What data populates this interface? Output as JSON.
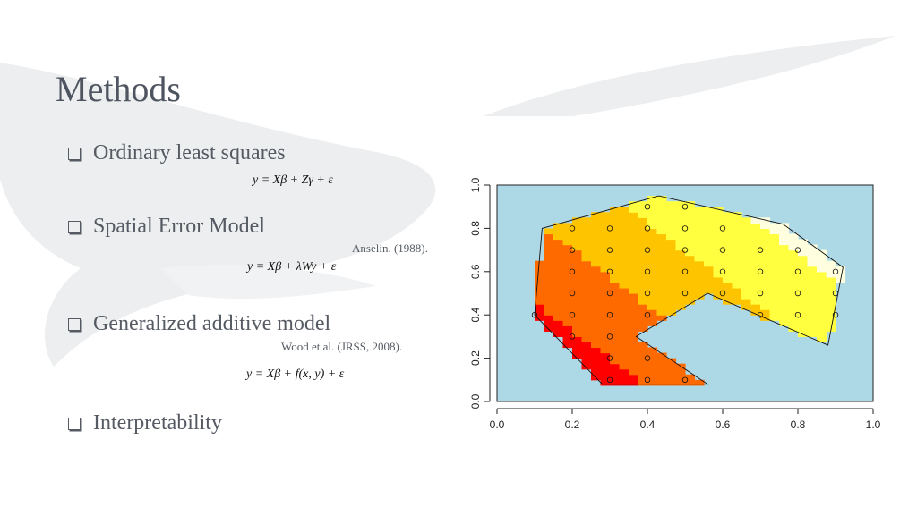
{
  "slide": {
    "title": "Methods",
    "bullets": [
      {
        "label": "Ordinary least squares"
      },
      {
        "label": "Spatial Error Model"
      },
      {
        "label": "Generalized additive model"
      },
      {
        "label": "Interpretability"
      }
    ],
    "citations": {
      "sem": "Anselin. (1988).",
      "gam": "Wood et al. (JRSS, 2008)."
    },
    "equations": {
      "ols": "y = Xβ + Zγ + ε",
      "sem": "y = Xβ + λWy + ε",
      "gam": "y = Xβ + f(x, y) + ε"
    }
  },
  "chart_data": {
    "type": "heatmap",
    "xlim": [
      0.0,
      1.0
    ],
    "ylim": [
      0.0,
      1.0
    ],
    "x_ticks": [
      "0.0",
      "0.2",
      "0.4",
      "0.6",
      "0.8",
      "1.0"
    ],
    "y_ticks": [
      "0.0",
      "0.2",
      "0.4",
      "0.6",
      "0.8",
      "1.0"
    ],
    "background_color": "#add8e6",
    "color_scale": [
      "#ff0000",
      "#ff6a00",
      "#ffc400",
      "#ffff40",
      "#ffffe0"
    ],
    "boundary_polygon": [
      [
        0.28,
        0.08
      ],
      [
        0.56,
        0.08
      ],
      [
        0.37,
        0.3
      ],
      [
        0.56,
        0.5
      ],
      [
        0.88,
        0.26
      ],
      [
        0.92,
        0.62
      ],
      [
        0.76,
        0.82
      ],
      [
        0.43,
        0.95
      ],
      [
        0.12,
        0.8
      ],
      [
        0.1,
        0.4
      ]
    ],
    "points": [
      [
        0.4,
        0.9
      ],
      [
        0.5,
        0.9
      ],
      [
        0.2,
        0.8
      ],
      [
        0.3,
        0.8
      ],
      [
        0.4,
        0.8
      ],
      [
        0.5,
        0.8
      ],
      [
        0.6,
        0.8
      ],
      [
        0.2,
        0.7
      ],
      [
        0.3,
        0.7
      ],
      [
        0.4,
        0.7
      ],
      [
        0.5,
        0.7
      ],
      [
        0.6,
        0.7
      ],
      [
        0.7,
        0.7
      ],
      [
        0.8,
        0.7
      ],
      [
        0.2,
        0.6
      ],
      [
        0.3,
        0.6
      ],
      [
        0.4,
        0.6
      ],
      [
        0.5,
        0.6
      ],
      [
        0.6,
        0.6
      ],
      [
        0.7,
        0.6
      ],
      [
        0.8,
        0.6
      ],
      [
        0.9,
        0.6
      ],
      [
        0.2,
        0.5
      ],
      [
        0.3,
        0.5
      ],
      [
        0.4,
        0.5
      ],
      [
        0.5,
        0.5
      ],
      [
        0.6,
        0.5
      ],
      [
        0.7,
        0.5
      ],
      [
        0.8,
        0.5
      ],
      [
        0.9,
        0.5
      ],
      [
        0.1,
        0.4
      ],
      [
        0.2,
        0.4
      ],
      [
        0.3,
        0.4
      ],
      [
        0.4,
        0.4
      ],
      [
        0.7,
        0.4
      ],
      [
        0.8,
        0.4
      ],
      [
        0.9,
        0.4
      ],
      [
        0.2,
        0.3
      ],
      [
        0.3,
        0.3
      ],
      [
        0.3,
        0.2
      ],
      [
        0.4,
        0.2
      ],
      [
        0.3,
        0.1
      ],
      [
        0.4,
        0.1
      ],
      [
        0.5,
        0.1
      ]
    ]
  }
}
